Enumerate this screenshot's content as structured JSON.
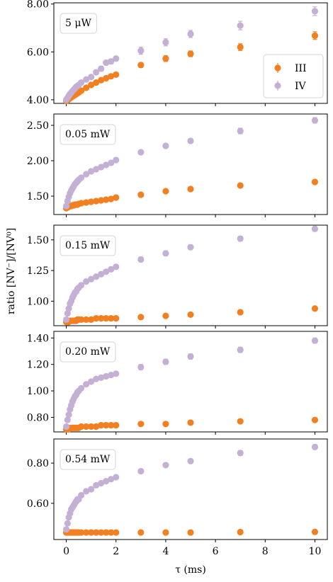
{
  "chart_data": {
    "type": "scatter",
    "xlabel": "τ (ms)",
    "ylabel": "ratio [NV⁻]/[NV⁰]",
    "xlim": [
      -0.5,
      10.5
    ],
    "xticks": [
      0,
      2,
      4,
      6,
      8,
      10
    ],
    "xtick_labels": [
      "0",
      "2",
      "4",
      "6",
      "8",
      "10"
    ],
    "colors": {
      "III": "#f28020",
      "IV": "#c5b0d5"
    },
    "legend": {
      "location": "right",
      "entries": [
        "III",
        "IV"
      ]
    },
    "panels": [
      {
        "label": "5 μW",
        "ylim": [
          3.85,
          8.05
        ],
        "yticks": [
          4.0,
          6.0,
          8.0
        ],
        "ytick_labels": [
          "4.00",
          "6.00",
          "8.00"
        ],
        "series": [
          {
            "name": "III",
            "x": [
              0,
              0.05,
              0.1,
              0.15,
              0.2,
              0.25,
              0.3,
              0.35,
              0.4,
              0.45,
              0.5,
              0.6,
              0.8,
              1.0,
              1.2,
              1.4,
              1.6,
              1.8,
              2.0,
              3,
              4,
              5,
              7,
              10
            ],
            "y": [
              3.95,
              3.98,
              4.02,
              4.06,
              4.1,
              4.14,
              4.17,
              4.2,
              4.24,
              4.27,
              4.3,
              4.38,
              4.5,
              4.62,
              4.72,
              4.82,
              4.9,
              4.98,
              5.05,
              5.45,
              5.72,
              5.92,
              6.2,
              6.68
            ],
            "err": [
              0.06,
              0.06,
              0.06,
              0.06,
              0.06,
              0.06,
              0.06,
              0.06,
              0.06,
              0.06,
              0.06,
              0.06,
              0.06,
              0.06,
              0.06,
              0.06,
              0.06,
              0.06,
              0.06,
              0.1,
              0.12,
              0.12,
              0.14,
              0.16
            ]
          },
          {
            "name": "IV",
            "x": [
              0,
              0.05,
              0.1,
              0.15,
              0.2,
              0.25,
              0.3,
              0.35,
              0.4,
              0.45,
              0.5,
              0.6,
              0.8,
              1.0,
              1.2,
              1.4,
              1.6,
              1.8,
              2.0,
              3,
              4,
              5,
              7,
              10
            ],
            "y": [
              4.0,
              4.08,
              4.16,
              4.24,
              4.3,
              4.36,
              4.42,
              4.48,
              4.54,
              4.58,
              4.62,
              4.72,
              4.85,
              4.95,
              5.15,
              5.3,
              5.55,
              5.6,
              5.72,
              6.05,
              6.4,
              6.75,
              7.1,
              7.7
            ],
            "err": [
              0.08,
              0.08,
              0.08,
              0.08,
              0.08,
              0.08,
              0.08,
              0.08,
              0.08,
              0.08,
              0.08,
              0.08,
              0.08,
              0.08,
              0.1,
              0.1,
              0.1,
              0.1,
              0.1,
              0.15,
              0.15,
              0.15,
              0.18,
              0.18
            ]
          }
        ]
      },
      {
        "label": "0.05 mW",
        "ylim": [
          1.24,
          2.66
        ],
        "yticks": [
          1.5,
          2.0,
          2.5
        ],
        "ytick_labels": [
          "1.50",
          "2.00",
          "2.50"
        ],
        "series": [
          {
            "name": "III",
            "x": [
              0,
              0.05,
              0.1,
              0.15,
              0.2,
              0.25,
              0.3,
              0.35,
              0.4,
              0.45,
              0.5,
              0.6,
              0.8,
              1.0,
              1.2,
              1.4,
              1.6,
              1.8,
              2.0,
              3,
              4,
              5,
              7,
              10
            ],
            "y": [
              1.33,
              1.34,
              1.35,
              1.36,
              1.36,
              1.37,
              1.37,
              1.38,
              1.38,
              1.38,
              1.39,
              1.4,
              1.41,
              1.42,
              1.43,
              1.44,
              1.45,
              1.46,
              1.48,
              1.52,
              1.57,
              1.6,
              1.65,
              1.7
            ],
            "err": [
              0.02,
              0.02,
              0.02,
              0.02,
              0.02,
              0.02,
              0.02,
              0.02,
              0.02,
              0.02,
              0.02,
              0.02,
              0.02,
              0.02,
              0.02,
              0.02,
              0.02,
              0.02,
              0.02,
              0.02,
              0.02,
              0.02,
              0.02,
              0.02
            ]
          },
          {
            "name": "IV",
            "x": [
              0,
              0.05,
              0.1,
              0.15,
              0.2,
              0.25,
              0.3,
              0.35,
              0.4,
              0.45,
              0.5,
              0.6,
              0.8,
              1.0,
              1.2,
              1.4,
              1.6,
              1.8,
              2.0,
              3,
              4,
              5,
              7,
              10
            ],
            "y": [
              1.36,
              1.43,
              1.49,
              1.54,
              1.58,
              1.61,
              1.64,
              1.67,
              1.69,
              1.71,
              1.73,
              1.76,
              1.81,
              1.85,
              1.88,
              1.91,
              1.94,
              1.97,
              2.01,
              2.12,
              2.21,
              2.28,
              2.42,
              2.57
            ],
            "err": [
              0.02,
              0.02,
              0.02,
              0.02,
              0.02,
              0.02,
              0.02,
              0.02,
              0.02,
              0.02,
              0.02,
              0.02,
              0.02,
              0.02,
              0.02,
              0.02,
              0.02,
              0.02,
              0.03,
              0.03,
              0.03,
              0.03,
              0.04,
              0.04
            ]
          }
        ]
      },
      {
        "label": "0.15 mW",
        "ylim": [
          0.8,
          1.62
        ],
        "yticks": [
          1.0,
          1.25,
          1.5
        ],
        "ytick_labels": [
          "1.00",
          "1.25",
          "1.50"
        ],
        "series": [
          {
            "name": "III",
            "x": [
              0,
              0.05,
              0.1,
              0.15,
              0.2,
              0.25,
              0.3,
              0.35,
              0.4,
              0.45,
              0.5,
              0.6,
              0.8,
              1.0,
              1.2,
              1.4,
              1.6,
              1.8,
              2.0,
              3,
              4,
              5,
              7,
              10
            ],
            "y": [
              0.83,
              0.83,
              0.83,
              0.84,
              0.84,
              0.84,
              0.84,
              0.84,
              0.84,
              0.85,
              0.85,
              0.85,
              0.85,
              0.85,
              0.86,
              0.86,
              0.86,
              0.86,
              0.86,
              0.87,
              0.88,
              0.89,
              0.91,
              0.94
            ],
            "err": [
              0.01,
              0.01,
              0.01,
              0.01,
              0.01,
              0.01,
              0.01,
              0.01,
              0.01,
              0.01,
              0.01,
              0.01,
              0.01,
              0.01,
              0.01,
              0.01,
              0.01,
              0.01,
              0.01,
              0.01,
              0.01,
              0.01,
              0.01,
              0.01
            ]
          },
          {
            "name": "IV",
            "x": [
              0,
              0.05,
              0.1,
              0.15,
              0.2,
              0.25,
              0.3,
              0.35,
              0.4,
              0.45,
              0.5,
              0.6,
              0.8,
              1.0,
              1.2,
              1.4,
              1.6,
              1.8,
              2.0,
              3,
              4,
              5,
              7,
              10
            ],
            "y": [
              0.85,
              0.9,
              0.94,
              0.98,
              1.0,
              1.03,
              1.05,
              1.07,
              1.08,
              1.1,
              1.11,
              1.13,
              1.16,
              1.18,
              1.2,
              1.22,
              1.24,
              1.26,
              1.28,
              1.34,
              1.39,
              1.44,
              1.51,
              1.59
            ],
            "err": [
              0.01,
              0.01,
              0.01,
              0.01,
              0.01,
              0.01,
              0.01,
              0.01,
              0.01,
              0.01,
              0.01,
              0.01,
              0.01,
              0.01,
              0.01,
              0.01,
              0.01,
              0.01,
              0.01,
              0.02,
              0.02,
              0.02,
              0.02,
              0.02
            ]
          }
        ]
      },
      {
        "label": "0.20 mW",
        "ylim": [
          0.69,
          1.45
        ],
        "yticks": [
          0.8,
          1.0,
          1.2,
          1.4
        ],
        "ytick_labels": [
          "0.80",
          "1.00",
          "1.20",
          "1.40"
        ],
        "series": [
          {
            "name": "III",
            "x": [
              0,
              0.05,
              0.1,
              0.15,
              0.2,
              0.25,
              0.3,
              0.35,
              0.4,
              0.45,
              0.5,
              0.6,
              0.8,
              1.0,
              1.2,
              1.4,
              1.6,
              1.8,
              2.0,
              3,
              4,
              5,
              7,
              10
            ],
            "y": [
              0.71,
              0.71,
              0.71,
              0.72,
              0.72,
              0.72,
              0.72,
              0.72,
              0.72,
              0.72,
              0.72,
              0.73,
              0.73,
              0.73,
              0.73,
              0.74,
              0.74,
              0.74,
              0.74,
              0.75,
              0.75,
              0.76,
              0.77,
              0.78
            ],
            "err": [
              0.01,
              0.01,
              0.01,
              0.01,
              0.01,
              0.01,
              0.01,
              0.01,
              0.01,
              0.01,
              0.01,
              0.01,
              0.01,
              0.01,
              0.01,
              0.01,
              0.01,
              0.01,
              0.01,
              0.01,
              0.01,
              0.01,
              0.01,
              0.01
            ]
          },
          {
            "name": "IV",
            "x": [
              0,
              0.05,
              0.1,
              0.15,
              0.2,
              0.25,
              0.3,
              0.35,
              0.4,
              0.45,
              0.5,
              0.6,
              0.8,
              1.0,
              1.2,
              1.4,
              1.6,
              1.8,
              2.0,
              3,
              4,
              5,
              7,
              10
            ],
            "y": [
              0.73,
              0.78,
              0.82,
              0.86,
              0.89,
              0.92,
              0.94,
              0.96,
              0.97,
              0.99,
              1.0,
              1.02,
              1.05,
              1.07,
              1.09,
              1.1,
              1.11,
              1.12,
              1.13,
              1.18,
              1.22,
              1.26,
              1.31,
              1.38
            ],
            "err": [
              0.01,
              0.01,
              0.01,
              0.01,
              0.01,
              0.01,
              0.01,
              0.01,
              0.01,
              0.01,
              0.01,
              0.01,
              0.01,
              0.01,
              0.01,
              0.01,
              0.01,
              0.01,
              0.01,
              0.02,
              0.02,
              0.02,
              0.02,
              0.02
            ]
          }
        ]
      },
      {
        "label": "0.54 mW",
        "ylim": [
          0.42,
          0.92
        ],
        "yticks": [
          0.6,
          0.8
        ],
        "ytick_labels": [
          "0.60",
          "0.80"
        ],
        "series": [
          {
            "name": "III",
            "x": [
              0,
              0.05,
              0.1,
              0.15,
              0.2,
              0.25,
              0.3,
              0.35,
              0.4,
              0.45,
              0.5,
              0.6,
              0.8,
              1.0,
              1.2,
              1.4,
              1.6,
              1.8,
              2.0,
              3,
              4,
              5,
              7,
              10
            ],
            "y": [
              0.455,
              0.455,
              0.455,
              0.455,
              0.455,
              0.455,
              0.455,
              0.455,
              0.455,
              0.455,
              0.455,
              0.455,
              0.455,
              0.455,
              0.455,
              0.455,
              0.455,
              0.455,
              0.455,
              0.455,
              0.455,
              0.455,
              0.457,
              0.458
            ],
            "err": [
              0.006,
              0.006,
              0.006,
              0.006,
              0.006,
              0.006,
              0.006,
              0.006,
              0.006,
              0.006,
              0.006,
              0.006,
              0.006,
              0.006,
              0.006,
              0.006,
              0.006,
              0.006,
              0.006,
              0.006,
              0.006,
              0.006,
              0.006,
              0.006
            ]
          },
          {
            "name": "IV",
            "x": [
              0,
              0.05,
              0.1,
              0.15,
              0.2,
              0.25,
              0.3,
              0.35,
              0.4,
              0.45,
              0.5,
              0.6,
              0.8,
              1.0,
              1.2,
              1.4,
              1.6,
              1.8,
              2.0,
              3,
              4,
              5,
              7,
              10
            ],
            "y": [
              0.47,
              0.5,
              0.53,
              0.55,
              0.57,
              0.58,
              0.59,
              0.6,
              0.61,
              0.62,
              0.62,
              0.64,
              0.66,
              0.67,
              0.69,
              0.7,
              0.71,
              0.72,
              0.73,
              0.76,
              0.79,
              0.81,
              0.85,
              0.88
            ],
            "err": [
              0.008,
              0.008,
              0.008,
              0.008,
              0.008,
              0.008,
              0.008,
              0.008,
              0.008,
              0.008,
              0.008,
              0.008,
              0.008,
              0.008,
              0.008,
              0.008,
              0.008,
              0.008,
              0.008,
              0.01,
              0.01,
              0.01,
              0.012,
              0.012
            ]
          }
        ]
      }
    ]
  }
}
